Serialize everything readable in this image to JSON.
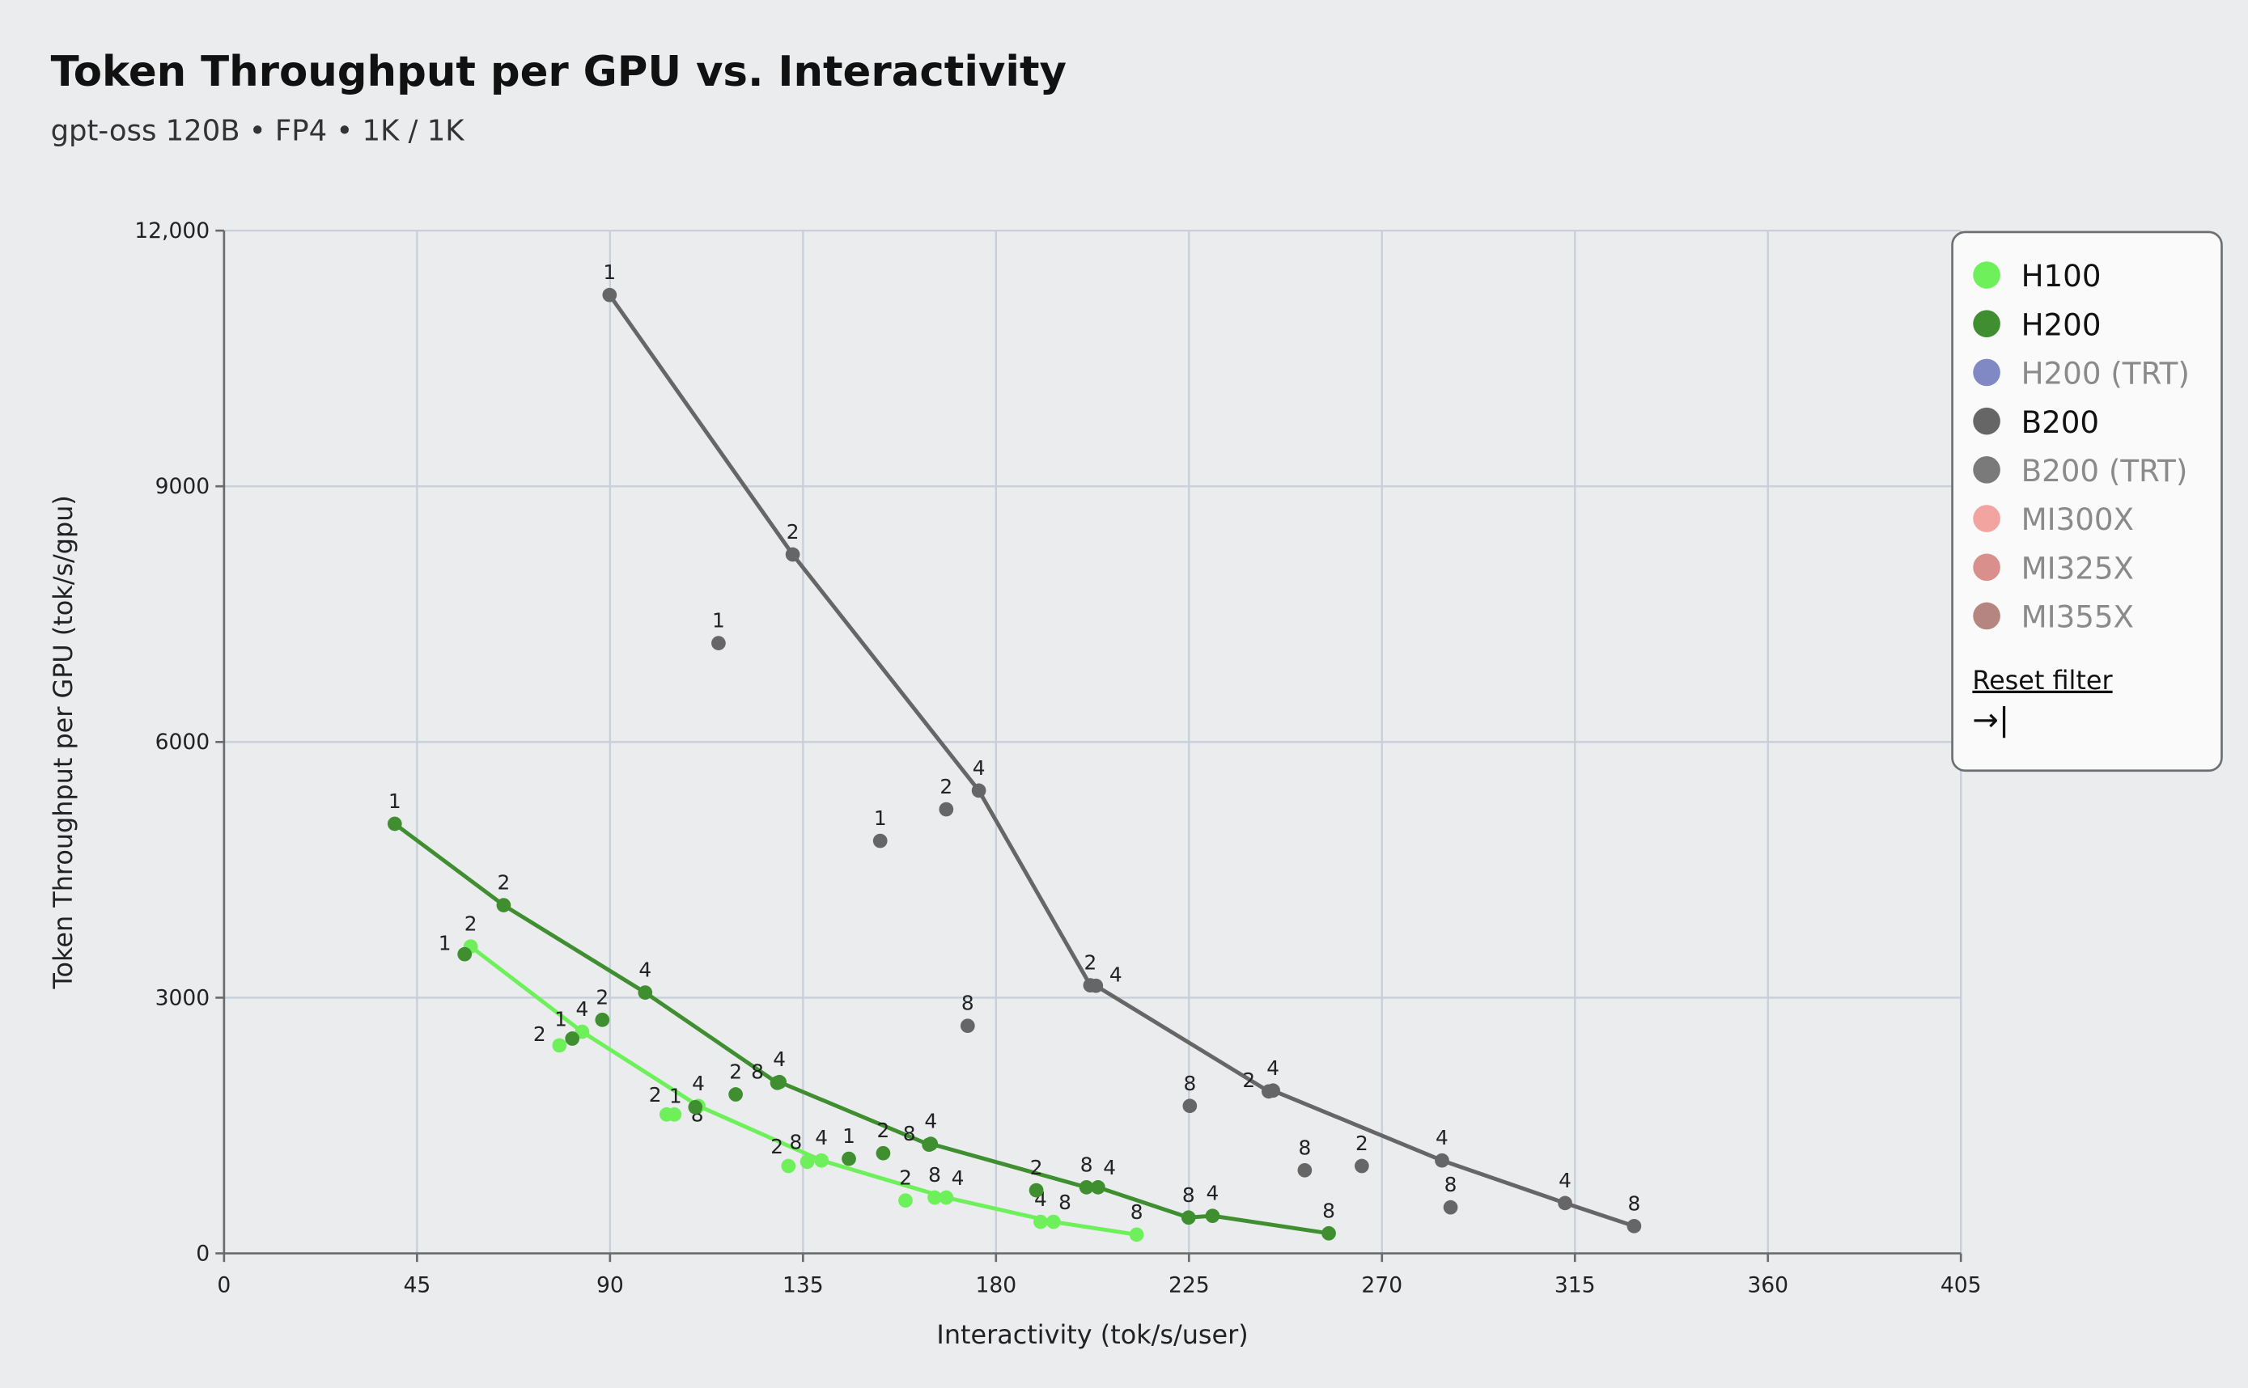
{
  "chart_data": {
    "type": "scatter",
    "title": "Token Throughput per GPU vs. Interactivity",
    "subtitle": "gpt-oss 120B • FP4 • 1K / 1K",
    "xlabel": "Interactivity (tok/s/user)",
    "ylabel": "Token Throughput per GPU (tok/s/gpu)",
    "xlim": [
      0,
      405
    ],
    "ylim": [
      0,
      12000
    ],
    "xticks": [
      "0",
      "45",
      "90",
      "135",
      "180",
      "225",
      "270",
      "315",
      "360",
      "405"
    ],
    "yticks": [
      "0",
      "3000",
      "6000",
      "9000",
      "12,000"
    ],
    "xtick_values": [
      0,
      45,
      90,
      135,
      180,
      225,
      270,
      315,
      360,
      405
    ],
    "ytick_values": [
      0,
      3000,
      6000,
      9000,
      12000
    ],
    "grid": true,
    "legend_placement": "top-right",
    "series": [
      {
        "name": "H100",
        "color": "#6ef05a",
        "active": true,
        "frontier": [
          [
            57.5,
            3600,
            "2"
          ],
          [
            83.5,
            2600,
            "4"
          ],
          [
            110.6,
            1730,
            "4"
          ],
          [
            139.3,
            1090,
            "4"
          ],
          [
            168.4,
            655,
            "4"
          ],
          [
            193.4,
            370,
            "8"
          ],
          [
            212.8,
            220,
            "8"
          ]
        ],
        "points": [
          [
            78.2,
            2440,
            "2"
          ],
          [
            103.2,
            1630,
            "2"
          ],
          [
            105,
            1630,
            "8"
          ],
          [
            131.6,
            1025,
            "2"
          ],
          [
            136,
            1075,
            "8"
          ],
          [
            158.9,
            620,
            "2"
          ],
          [
            165.7,
            655,
            "8"
          ],
          [
            190.4,
            370,
            "4"
          ]
        ]
      },
      {
        "name": "H200",
        "color": "#3f8f31",
        "active": true,
        "frontier": [
          [
            39.8,
            5040,
            "1"
          ],
          [
            65.2,
            4085,
            "2"
          ],
          [
            98.2,
            3060,
            "4"
          ],
          [
            129,
            2000,
            "8"
          ],
          [
            129.5,
            2010,
            "4"
          ],
          [
            164.4,
            1275,
            "8"
          ],
          [
            164.8,
            1285,
            "4"
          ],
          [
            201.1,
            775,
            "8"
          ],
          [
            203.8,
            775,
            "4"
          ],
          [
            224.9,
            420,
            "8"
          ],
          [
            230.5,
            440,
            "4"
          ],
          [
            257.6,
            235,
            "8"
          ]
        ],
        "points": [
          [
            56.1,
            3510,
            "1"
          ],
          [
            81.2,
            2520,
            "1"
          ],
          [
            88.2,
            2740,
            "2"
          ],
          [
            109.9,
            1715,
            "1"
          ],
          [
            119.3,
            1865,
            "2"
          ],
          [
            145.7,
            1110,
            "1"
          ],
          [
            153.7,
            1175,
            "2"
          ],
          [
            189.4,
            740,
            "2"
          ]
        ]
      },
      {
        "name": "H200 (TRT)",
        "color": "#8089c4",
        "active": false,
        "frontier": [],
        "points": []
      },
      {
        "name": "B200",
        "color": "#666666",
        "active": true,
        "frontier": [
          [
            89.9,
            11245,
            "1"
          ],
          [
            132.6,
            8200,
            "2"
          ],
          [
            176,
            5430,
            "4"
          ],
          [
            202,
            3145,
            "2"
          ],
          [
            203.3,
            3140,
            "4"
          ],
          [
            243.6,
            1900,
            "2"
          ],
          [
            244.6,
            1910,
            "4"
          ],
          [
            284,
            1090,
            "4"
          ],
          [
            312.7,
            590,
            "4"
          ],
          [
            328.8,
            320,
            "8"
          ]
        ],
        "points": [
          [
            115.3,
            7160,
            "1"
          ],
          [
            153,
            4840,
            "1"
          ],
          [
            168.4,
            5210,
            "2"
          ],
          [
            173.4,
            2670,
            "8"
          ],
          [
            225.2,
            1730,
            "8"
          ],
          [
            252,
            975,
            "8"
          ],
          [
            265.3,
            1025,
            "2"
          ],
          [
            286,
            540,
            "8"
          ]
        ]
      },
      {
        "name": "B200 (TRT)",
        "color": "#7a7a7a",
        "active": false,
        "frontier": [],
        "points": []
      },
      {
        "name": "MI300X",
        "color": "#f2a4a0",
        "active": false,
        "frontier": [],
        "points": []
      },
      {
        "name": "MI325X",
        "color": "#d98f8c",
        "active": false,
        "frontier": [],
        "points": []
      },
      {
        "name": "MI355X",
        "color": "#b58680",
        "active": false,
        "frontier": [],
        "points": []
      }
    ]
  },
  "legend": {
    "reset_label": "Reset filter",
    "collapse_icon": "arrow-right-to-bar-icon",
    "collapse_glyph": "→|"
  }
}
